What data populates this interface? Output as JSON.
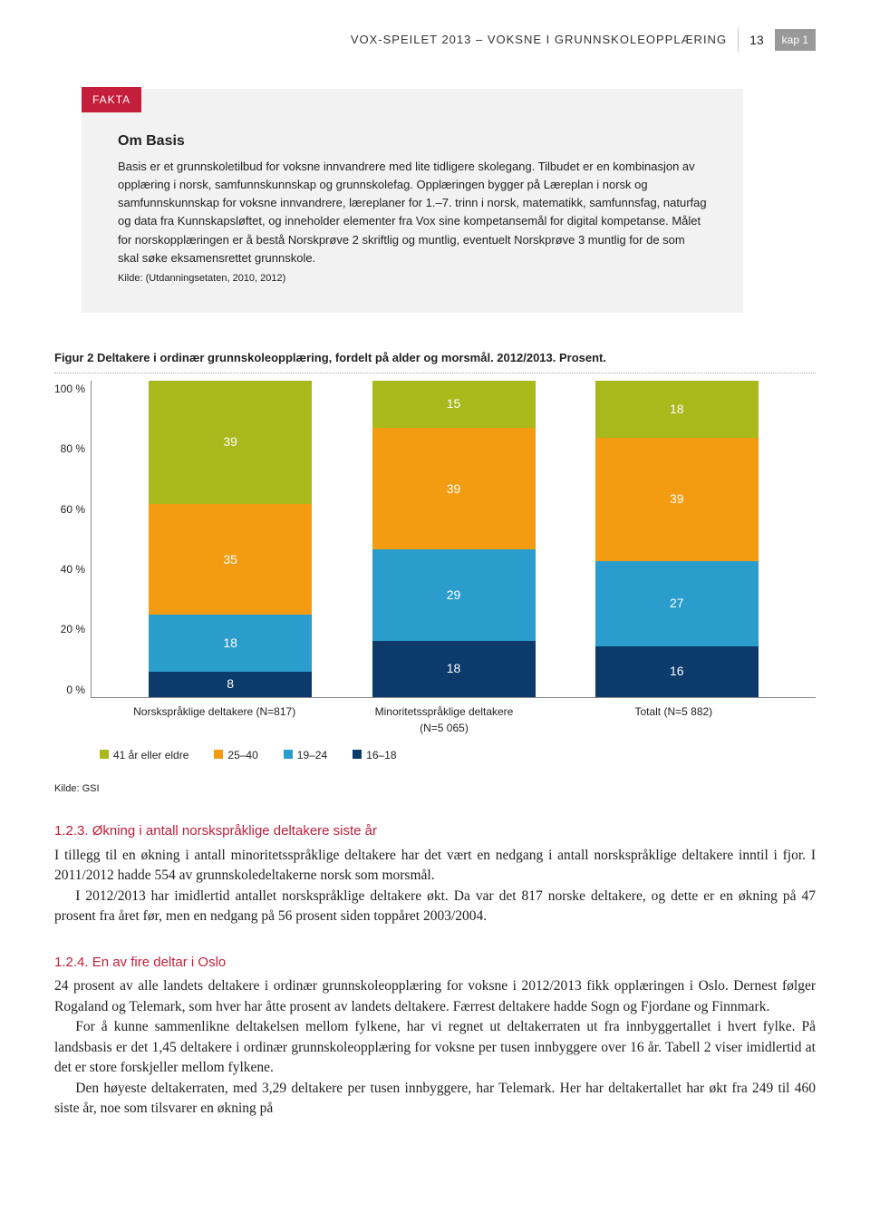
{
  "header": {
    "doc_title": "VOX-SPEILET 2013 – VOKSNE I GRUNNSKOLEOPPLÆRING",
    "page_number": "13",
    "chapter": "kap 1"
  },
  "fakta": {
    "tag": "FAKTA",
    "heading": "Om Basis",
    "body": "Basis er et grunnskoletilbud for voksne innvandrere med lite tidligere skolegang. Tilbudet er en kombinasjon av opplæring i norsk, samfunnskunnskap og grunnskolefag. Opplæringen bygger på Læreplan i norsk og samfunnskunnskap for voksne innvandrere, læreplaner for 1.–7. trinn i norsk, matematikk, samfunnsfag, naturfag og data fra Kunnskapsløftet, og inneholder elementer fra Vox sine kompetansemål for digital kompetanse. Målet for norskopplæringen er å bestå Norskprøve 2 skriftlig og muntlig, eventuelt Norskprøve 3 muntlig for de som skal søke eksamensrettet grunnskole.",
    "source": "Kilde: (Utdanningsetaten, 2010, 2012)"
  },
  "chart": {
    "title": "Figur 2 Deltakere i ordinær grunnskoleopplæring, fordelt på alder og morsmål. 2012/2013. Prosent.",
    "ylabels": [
      "100 %",
      "80 %",
      "60 %",
      "40 %",
      "20 %",
      "0 %"
    ],
    "bars": [
      {
        "label": "Norskspråklige deltakere (N=817)",
        "segs": [
          {
            "v": 8,
            "c": "#0b3a6b"
          },
          {
            "v": 18,
            "c": "#2a9dcc"
          },
          {
            "v": 35,
            "c": "#f39c12"
          },
          {
            "v": 39,
            "c": "#a9b81a"
          }
        ]
      },
      {
        "label": "Minoritetsspråklige deltakere (N=5 065)",
        "segs": [
          {
            "v": 18,
            "c": "#0b3a6b",
            "txt_below": true
          },
          {
            "v": 29,
            "c": "#2a9dcc"
          },
          {
            "v": 39,
            "c": "#f39c12"
          },
          {
            "v": 15,
            "c": "#a9b81a"
          }
        ]
      },
      {
        "label": "Totalt (N=5 882)",
        "segs": [
          {
            "v": 16,
            "c": "#0b3a6b"
          },
          {
            "v": 27,
            "c": "#2a9dcc"
          },
          {
            "v": 39,
            "c": "#f39c12"
          },
          {
            "v": 18,
            "c": "#a9b81a"
          }
        ]
      }
    ],
    "legend": [
      {
        "label": "41 år eller eldre",
        "color": "#a9b81a"
      },
      {
        "label": "25–40",
        "color": "#f39c12"
      },
      {
        "label": "19–24",
        "color": "#2a9dcc"
      },
      {
        "label": "16–18",
        "color": "#0b3a6b"
      }
    ],
    "source": "Kilde: GSI"
  },
  "sections": [
    {
      "heading": "1.2.3. Økning i antall norskspråklige deltakere siste år",
      "paras": [
        "I tillegg til en økning i antall minoritetsspråklige deltakere har det vært en nedgang i antall norskspråklige deltakere inntil i fjor. I 2011/2012 hadde 554 av grunnskoledeltakerne norsk som morsmål.",
        "I 2012/2013 har imidlertid antallet norskspråklige deltakere økt. Da var det 817 norske deltakere, og dette er en økning på 47 prosent fra året før, men en nedgang på 56 prosent siden toppåret 2003/2004."
      ]
    },
    {
      "heading": "1.2.4. En av fire deltar i Oslo",
      "paras": [
        "24 prosent av alle landets deltakere i ordinær grunnskoleopplæring for voksne i 2012/2013 fikk opplæringen i Oslo. Dernest følger Rogaland og Telemark, som hver har åtte prosent av landets deltakere. Færrest deltakere hadde Sogn og Fjordane og Finnmark.",
        "For å kunne sammenlikne deltakelsen mellom fylkene, har vi regnet ut deltakerraten ut fra innbyggertallet i hvert fylke. På landsbasis er det 1,45 deltakere i ordinær grunnskoleopplæring for voksne per tusen innbyggere over 16 år. Tabell 2 viser imidlertid at det er store forskjeller mellom fylkene.",
        "Den høyeste deltakerraten, med 3,29 deltakere per tusen innbyggere, har Telemark. Her har deltakertallet har økt fra 249 til 460 siste år, noe som tilsvarer en økning på"
      ]
    }
  ]
}
